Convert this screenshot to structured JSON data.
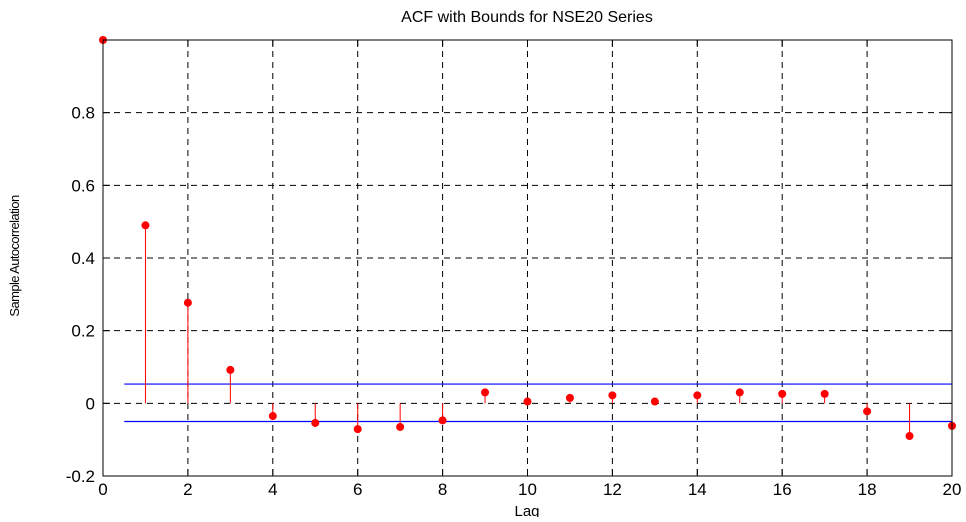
{
  "chart_data": {
    "type": "stem",
    "title": "ACF with Bounds for NSE20 Series",
    "xlabel": "Lag",
    "ylabel": "Sample Autocorrelation",
    "xlim": [
      0,
      20
    ],
    "ylim": [
      -0.2,
      1.0
    ],
    "x_ticks": [
      0,
      2,
      4,
      6,
      8,
      10,
      12,
      14,
      16,
      18,
      20
    ],
    "y_ticks": [
      -0.2,
      0,
      0.2,
      0.4,
      0.6,
      0.8
    ],
    "y_tick_labels": [
      "-0.2",
      "0",
      "0.2",
      "0.4",
      "0.6",
      "0.8"
    ],
    "grid": true,
    "lags": [
      0,
      1,
      2,
      3,
      4,
      5,
      6,
      7,
      8,
      9,
      10,
      11,
      12,
      13,
      14,
      15,
      16,
      17,
      18,
      19,
      20
    ],
    "values": [
      1.0,
      0.49,
      0.277,
      0.092,
      -0.035,
      -0.054,
      -0.071,
      -0.065,
      -0.047,
      0.03,
      0.005,
      0.015,
      0.022,
      0.005,
      0.022,
      0.03,
      0.026,
      0.026,
      -0.022,
      -0.09,
      -0.062
    ],
    "bounds": {
      "upper": 0.053,
      "lower": -0.05,
      "x_range": [
        0.5,
        20
      ]
    },
    "colors": {
      "stems": "#ff0000",
      "bounds": "#0000ff",
      "grid": "#000000",
      "axes": "#000000"
    }
  }
}
